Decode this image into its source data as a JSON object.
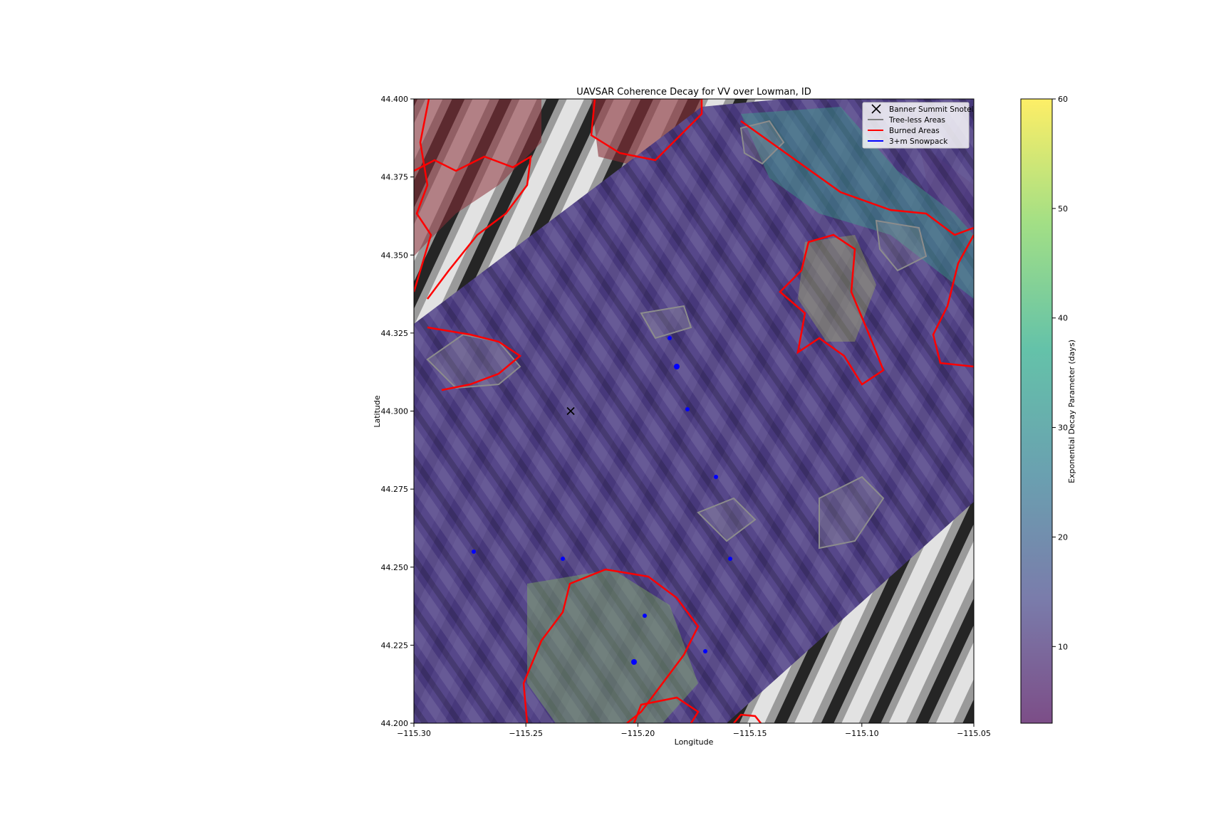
{
  "chart_data": {
    "type": "map",
    "title": "UAVSAR Coherence Decay for VV over Lowman, ID",
    "xlabel": "Longitude",
    "ylabel": "Latitude",
    "xlim": [
      -115.3,
      -115.05
    ],
    "ylim": [
      44.2,
      44.4
    ],
    "x_ticks": [
      -115.3,
      -115.25,
      -115.2,
      -115.15,
      -115.1,
      -115.05
    ],
    "x_tick_labels": [
      "−115.30",
      "−115.25",
      "−115.20",
      "−115.15",
      "−115.10",
      "−115.05"
    ],
    "y_ticks": [
      44.2,
      44.225,
      44.25,
      44.275,
      44.3,
      44.325,
      44.35,
      44.375,
      44.4
    ],
    "y_tick_labels": [
      "44.200",
      "44.225",
      "44.250",
      "44.275",
      "44.300",
      "44.325",
      "44.350",
      "44.375",
      "44.400"
    ],
    "legend": {
      "placement": "upper-right",
      "entries": [
        {
          "label": "Banner Summit Snotel",
          "marker": "x",
          "color": "#000000"
        },
        {
          "label": "Tree-less Areas",
          "line": true,
          "color": "#808080"
        },
        {
          "label": "Burned Areas",
          "line": true,
          "color": "#ff0000"
        },
        {
          "label": "3+m Snowpack",
          "line": true,
          "color": "#0000ff"
        }
      ]
    },
    "snotel": {
      "lon": -115.23,
      "lat": 44.3
    },
    "colorbar": {
      "label": "Exponential Decay Parameter (days)",
      "colormap": "viridis",
      "alpha": 0.7,
      "range": [
        3,
        60
      ],
      "ticks": [
        10,
        20,
        30,
        40,
        50,
        60
      ],
      "tick_labels": [
        "10",
        "20",
        "30",
        "40",
        "50",
        "60"
      ]
    },
    "colors": {
      "swath_base": "#4a3a82",
      "hillshade_light": "#d8d8d8",
      "hillshade_dark": "#1e1e1e",
      "burn_tint": "#8a3038",
      "treeless": "#8c8c8c",
      "burned": "#ff0000",
      "snowpack": "#0000ff"
    }
  }
}
